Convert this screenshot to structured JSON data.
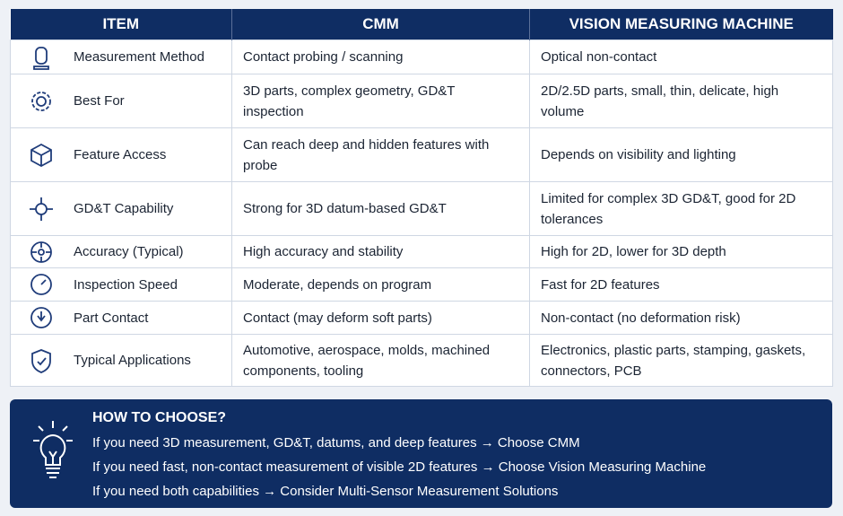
{
  "table": {
    "headers": [
      "ITEM",
      "CMM",
      "VISION MEASURING MACHINE"
    ],
    "rows": [
      [
        "Measurement Method",
        "Contact probing / scanning",
        "Optical non-contact"
      ],
      [
        "Best For",
        "3D parts, complex geometry, GD&T inspection",
        "2D/2.5D parts, small, thin, delicate, high volume"
      ],
      [
        "Feature Access",
        "Can reach deep and hidden features with probe",
        "Depends on visibility and lighting"
      ],
      [
        "GD&T Capability",
        "Strong for 3D datum-based GD&T",
        "Limited for complex 3D GD&T, good for 2D tolerances"
      ],
      [
        "Accuracy (Typical)",
        "High accuracy and stability",
        "High for 2D, lower for 3D depth"
      ],
      [
        "Inspection Speed",
        "Moderate, depends on program",
        "Fast for 2D features"
      ],
      [
        "Part Contact",
        "Contact (may deform soft parts)",
        "Non-contact (no deformation risk)"
      ],
      [
        "Typical Applications",
        "Automotive, aerospace, molds, machined components, tooling",
        "Electronics, plastic parts, stamping, gaskets, connectors, PCB"
      ]
    ]
  },
  "how_to_choose": {
    "title": "HOW TO CHOOSE?",
    "lines": [
      "If you need 3D measurement, GD&T, datums, and deep features → Choose CMM",
      "If you need fast, non-contact measurement of visible 2D features → Choose Vision Measuring Machine",
      "If you need both capabilities → Consider Multi-Sensor Measurement Solutions"
    ]
  }
}
